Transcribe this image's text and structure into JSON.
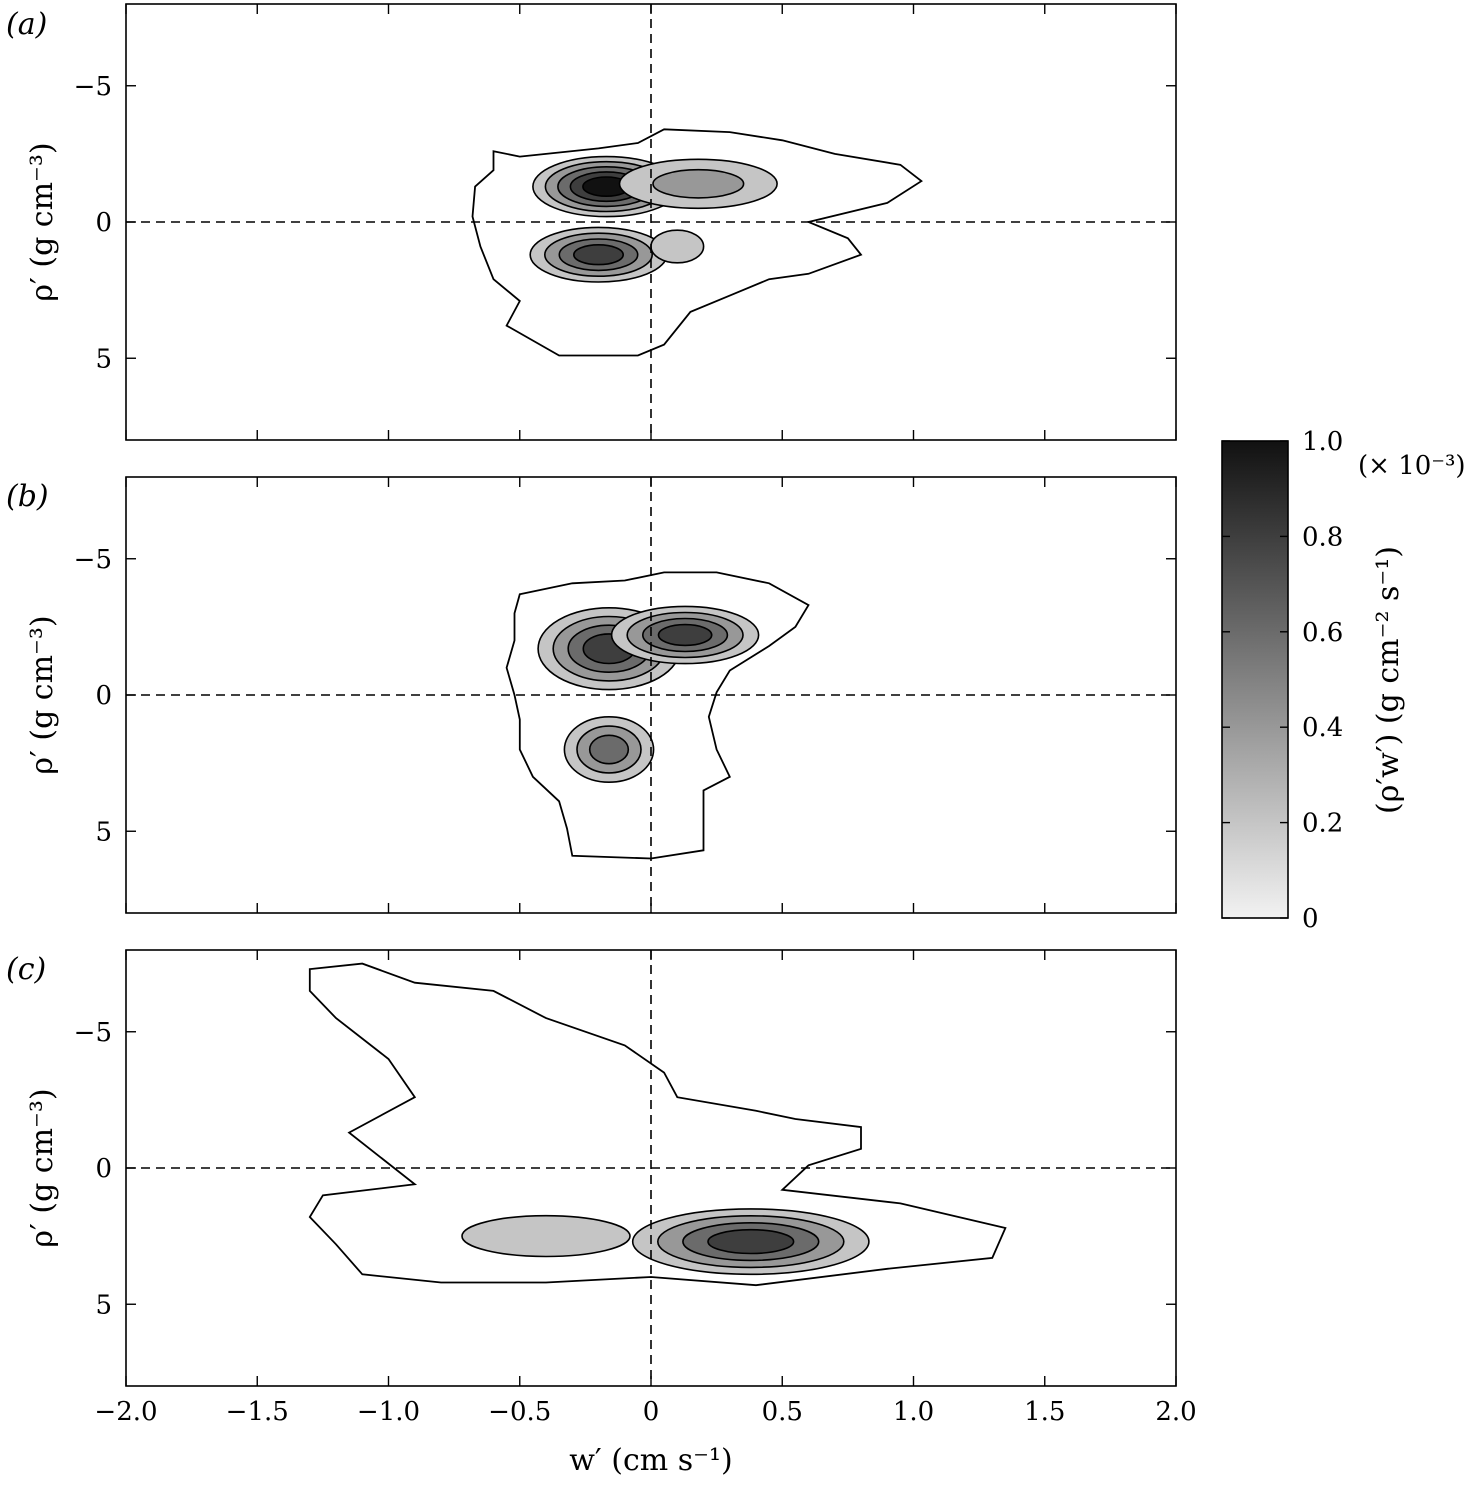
{
  "chart_data": {
    "type": "contour",
    "panels": [
      {
        "label": "(a)",
        "xlim": [
          -2.0,
          2.0
        ],
        "ylim": [
          8,
          -8
        ],
        "yticks": [
          "−5",
          "0",
          "5"
        ],
        "ylabel": "ρ′ (g cm⁻³)",
        "blobs": [
          {
            "cx": -0.17,
            "cy": -1.3,
            "rx": 0.28,
            "ry": 1.1,
            "levels": [
              0.2,
              0.4,
              0.6,
              0.8,
              1.0
            ]
          },
          {
            "cx": 0.18,
            "cy": -1.4,
            "rx": 0.3,
            "ry": 0.9,
            "levels": [
              0.2,
              0.4
            ]
          },
          {
            "cx": -0.2,
            "cy": 1.2,
            "rx": 0.26,
            "ry": 1.0,
            "levels": [
              0.2,
              0.4,
              0.6,
              0.8
            ]
          },
          {
            "cx": 0.1,
            "cy": 0.9,
            "rx": 0.1,
            "ry": 0.6,
            "levels": [
              0.2
            ]
          }
        ],
        "outer": [
          [
            -0.6,
            -2.6
          ],
          [
            -0.5,
            -2.4
          ],
          [
            -0.4,
            -2.5
          ],
          [
            -0.2,
            -2.7
          ],
          [
            -0.05,
            -2.9
          ],
          [
            0.05,
            -3.4
          ],
          [
            0.3,
            -3.3
          ],
          [
            0.5,
            -3.0
          ],
          [
            0.7,
            -2.5
          ],
          [
            0.95,
            -2.1
          ],
          [
            1.03,
            -1.5
          ],
          [
            0.9,
            -0.7
          ],
          [
            0.6,
            0.0
          ],
          [
            0.75,
            0.6
          ],
          [
            0.8,
            1.2
          ],
          [
            0.6,
            1.9
          ],
          [
            0.45,
            2.1
          ],
          [
            0.3,
            2.7
          ],
          [
            0.15,
            3.3
          ],
          [
            0.05,
            4.5
          ],
          [
            -0.05,
            4.9
          ],
          [
            -0.35,
            4.9
          ],
          [
            -0.55,
            3.8
          ],
          [
            -0.5,
            2.9
          ],
          [
            -0.6,
            2.1
          ],
          [
            -0.65,
            0.9
          ],
          [
            -0.68,
            -0.2
          ],
          [
            -0.67,
            -1.3
          ],
          [
            -0.6,
            -1.9
          ]
        ]
      },
      {
        "label": "(b)",
        "xlim": [
          -2.0,
          2.0
        ],
        "ylim": [
          8,
          -8
        ],
        "yticks": [
          "−5",
          "0",
          "5"
        ],
        "ylabel": "ρ′ (g cm⁻³)",
        "blobs": [
          {
            "cx": -0.16,
            "cy": -1.7,
            "rx": 0.27,
            "ry": 1.5,
            "levels": [
              0.2,
              0.4,
              0.6,
              0.8
            ]
          },
          {
            "cx": 0.13,
            "cy": -2.2,
            "rx": 0.28,
            "ry": 1.05,
            "levels": [
              0.2,
              0.4,
              0.6,
              0.8
            ]
          },
          {
            "cx": -0.16,
            "cy": 2.0,
            "rx": 0.17,
            "ry": 1.2,
            "levels": [
              0.2,
              0.4,
              0.6
            ]
          }
        ],
        "outer": [
          [
            -0.5,
            -3.7
          ],
          [
            -0.3,
            -4.1
          ],
          [
            -0.1,
            -4.2
          ],
          [
            0.05,
            -4.5
          ],
          [
            0.25,
            -4.5
          ],
          [
            0.45,
            -4.1
          ],
          [
            0.6,
            -3.3
          ],
          [
            0.55,
            -2.5
          ],
          [
            0.45,
            -1.8
          ],
          [
            0.3,
            -0.9
          ],
          [
            0.25,
            -0.1
          ],
          [
            0.22,
            0.8
          ],
          [
            0.25,
            2.0
          ],
          [
            0.3,
            3.0
          ],
          [
            0.2,
            3.5
          ],
          [
            0.2,
            4.5
          ],
          [
            0.2,
            5.7
          ],
          [
            0.0,
            6.0
          ],
          [
            -0.3,
            5.9
          ],
          [
            -0.32,
            4.9
          ],
          [
            -0.35,
            3.9
          ],
          [
            -0.45,
            3.0
          ],
          [
            -0.5,
            2.0
          ],
          [
            -0.5,
            0.9
          ],
          [
            -0.52,
            0.0
          ],
          [
            -0.55,
            -1.0
          ],
          [
            -0.52,
            -2.0
          ],
          [
            -0.52,
            -3.0
          ]
        ]
      },
      {
        "label": "(c)",
        "xlim": [
          -2.0,
          2.0
        ],
        "ylim": [
          8,
          -8
        ],
        "yticks": [
          "−5",
          "0",
          "5"
        ],
        "ylabel": "ρ′ (g cm⁻³)",
        "xticks": [
          "−2.0",
          "−1.5",
          "−1.0",
          "−0.5",
          "0",
          "0.5",
          "1.0",
          "1.5",
          "2.0"
        ],
        "xlabel": "w′ (cm s⁻¹)",
        "blobs": [
          {
            "cx": 0.38,
            "cy": 2.7,
            "rx": 0.45,
            "ry": 1.2,
            "levels": [
              0.2,
              0.4,
              0.6,
              0.8
            ]
          },
          {
            "cx": -0.4,
            "cy": 2.5,
            "rx": 0.32,
            "ry": 0.75,
            "levels": [
              0.2
            ]
          }
        ],
        "outer": [
          [
            -1.3,
            -7.3
          ],
          [
            -1.1,
            -7.5
          ],
          [
            -0.9,
            -6.8
          ],
          [
            -0.6,
            -6.5
          ],
          [
            -0.4,
            -5.5
          ],
          [
            -0.1,
            -4.5
          ],
          [
            0.05,
            -3.5
          ],
          [
            0.1,
            -2.6
          ],
          [
            0.4,
            -2.1
          ],
          [
            0.55,
            -1.8
          ],
          [
            0.8,
            -1.5
          ],
          [
            0.8,
            -0.7
          ],
          [
            0.6,
            -0.1
          ],
          [
            0.5,
            0.8
          ],
          [
            0.95,
            1.3
          ],
          [
            1.35,
            2.2
          ],
          [
            1.3,
            3.3
          ],
          [
            0.9,
            3.7
          ],
          [
            0.4,
            4.3
          ],
          [
            0.0,
            4.0
          ],
          [
            -0.4,
            4.2
          ],
          [
            -0.8,
            4.2
          ],
          [
            -1.1,
            3.9
          ],
          [
            -1.2,
            2.8
          ],
          [
            -1.3,
            1.8
          ],
          [
            -1.25,
            1.0
          ],
          [
            -0.9,
            0.6
          ],
          [
            -1.15,
            -1.3
          ],
          [
            -0.9,
            -2.6
          ],
          [
            -1.0,
            -4.0
          ],
          [
            -1.2,
            -5.5
          ],
          [
            -1.3,
            -6.5
          ]
        ]
      }
    ],
    "colorbar": {
      "min": 0,
      "max": 1.0,
      "ticks": [
        "0",
        "0.2",
        "0.4",
        "0.6",
        "0.8",
        "1.0"
      ],
      "multiplier": "(× 10⁻³)",
      "label": "(ρ′w′) (g cm⁻² s⁻¹)",
      "colors": {
        "low": "#f2f2f2",
        "high": "#111111"
      }
    }
  }
}
